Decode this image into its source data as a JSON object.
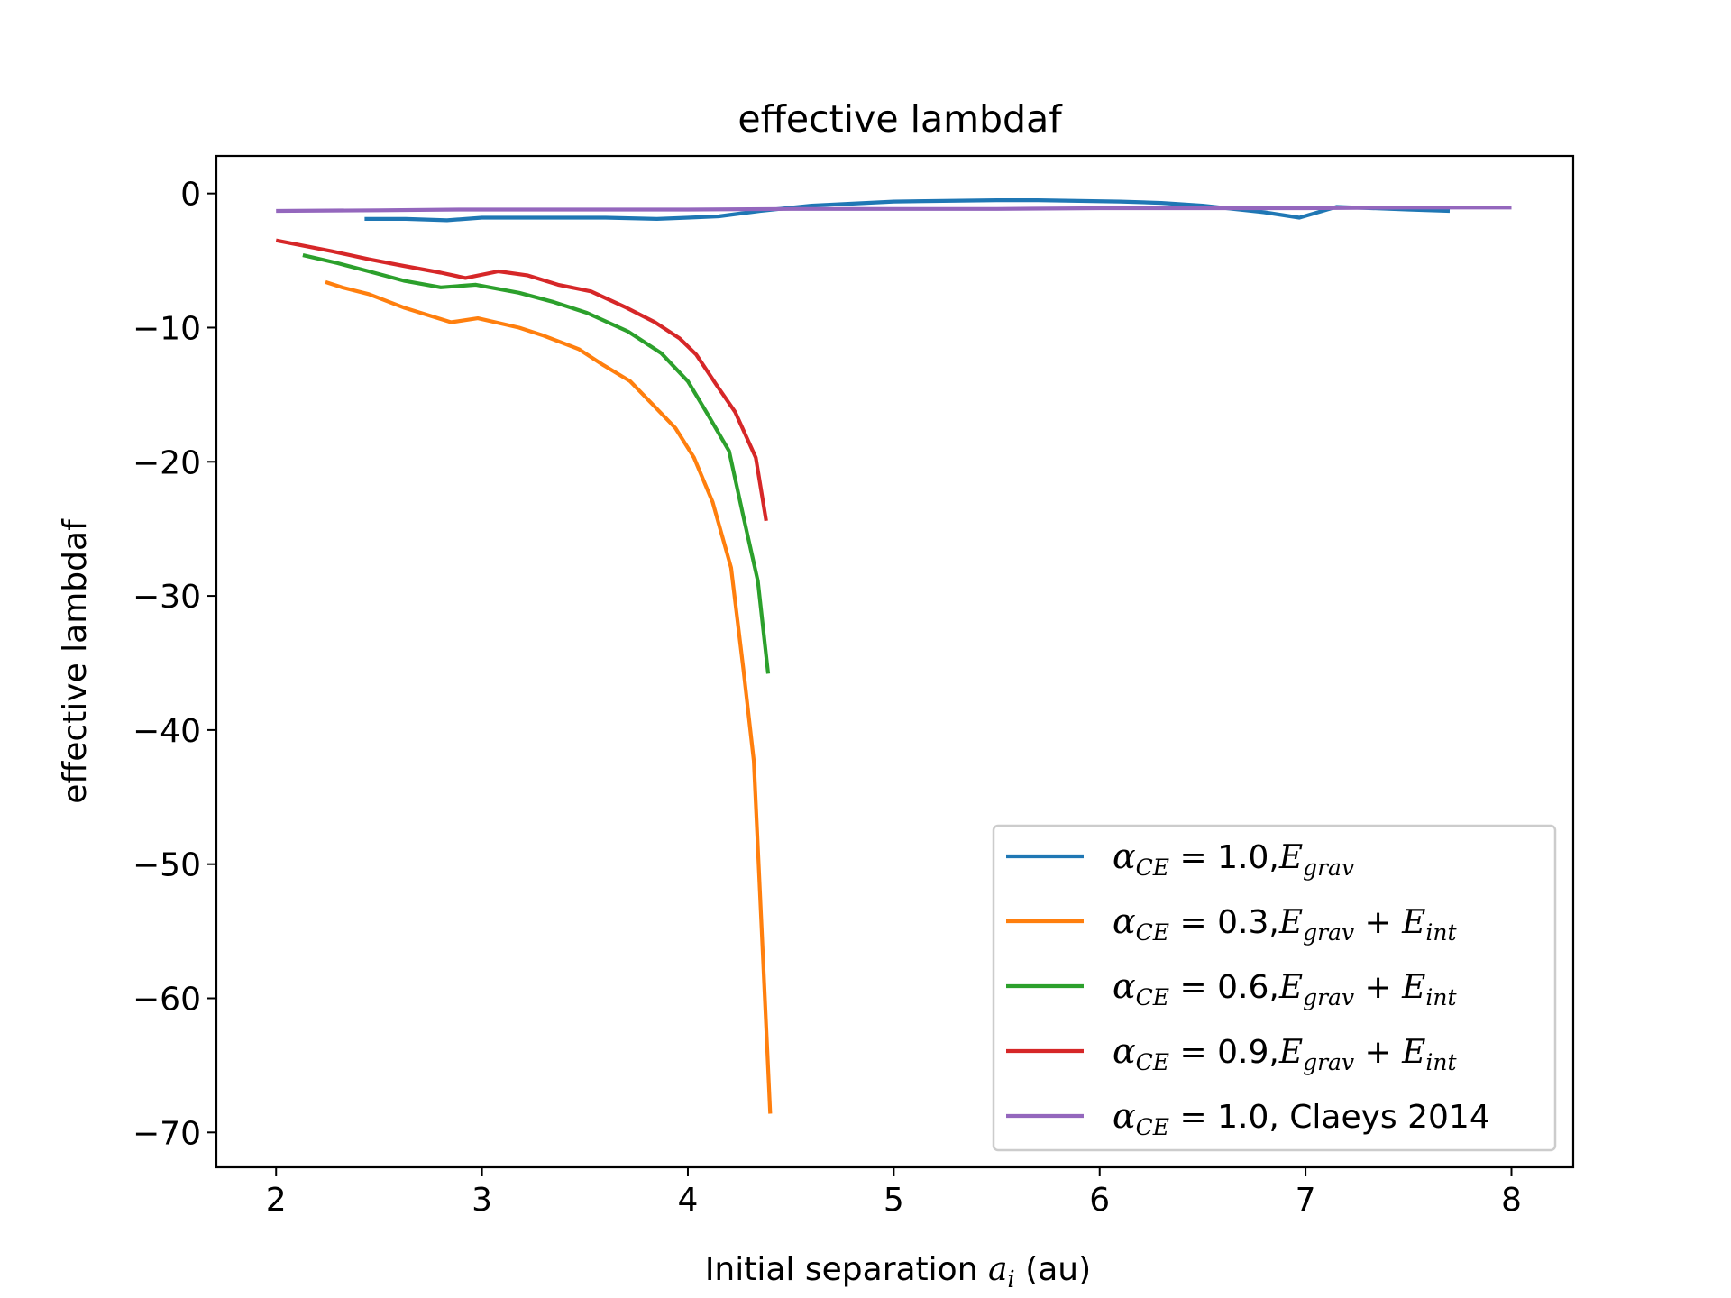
{
  "chart_data": {
    "type": "line",
    "title": "effective lambdaf",
    "ylabel": "effective lambdaf",
    "xlabel": {
      "prefix": "Initial separation ",
      "var": "a",
      "sub": "i",
      "suffix": " (au)"
    },
    "xlim": [
      1.71,
      8.3
    ],
    "ylim": [
      -72.6,
      2.8
    ],
    "xticks": [
      2,
      3,
      4,
      5,
      6,
      7,
      8
    ],
    "xtick_labels": [
      "2",
      "3",
      "4",
      "5",
      "6",
      "7",
      "8"
    ],
    "yticks": [
      0,
      -10,
      -20,
      -30,
      -40,
      -50,
      -60,
      -70
    ],
    "ytick_labels": [
      "0",
      "−10",
      "−20",
      "−30",
      "−40",
      "−50",
      "−60",
      "−70"
    ],
    "grid": false,
    "legend_position": "lower-right",
    "series": [
      {
        "name": "αCE = 1.0, Egrav",
        "legend": {
          "alpha": "α",
          "alpha_sub": "CE",
          "eq": "=",
          "value": "1.0,",
          "terms": [
            {
              "base": "E",
              "sub": "grav"
            }
          ]
        },
        "color": "#1f77b4",
        "x": [
          2.43,
          2.63,
          2.83,
          3.0,
          3.2,
          3.4,
          3.6,
          3.85,
          4.0,
          4.15,
          4.35,
          4.6,
          5.0,
          5.5,
          5.7,
          6.1,
          6.3,
          6.5,
          6.8,
          6.97,
          7.15,
          7.5,
          7.7
        ],
        "y": [
          -1.9,
          -1.9,
          -2.0,
          -1.8,
          -1.8,
          -1.8,
          -1.8,
          -1.9,
          -1.8,
          -1.7,
          -1.3,
          -0.9,
          -0.6,
          -0.5,
          -0.5,
          -0.6,
          -0.7,
          -0.9,
          -1.4,
          -1.8,
          -1.0,
          -1.2,
          -1.3
        ]
      },
      {
        "name": "αCE = 0.3, Egrav + Eint",
        "legend": {
          "alpha": "α",
          "alpha_sub": "CE",
          "eq": "=",
          "value": "0.3,",
          "terms": [
            {
              "base": "E",
              "sub": "grav"
            },
            {
              "base": "E",
              "sub": "int"
            }
          ]
        },
        "color": "#ff7f0e",
        "x": [
          2.24,
          2.32,
          2.45,
          2.62,
          2.85,
          2.98,
          3.18,
          3.3,
          3.47,
          3.59,
          3.72,
          3.84,
          3.94,
          4.03,
          4.12,
          4.21,
          4.27,
          4.32,
          4.36,
          4.4
        ],
        "y": [
          -6.6,
          -7.0,
          -7.5,
          -8.5,
          -9.6,
          -9.3,
          -10.0,
          -10.6,
          -11.6,
          -12.8,
          -14.0,
          -15.9,
          -17.5,
          -19.7,
          -23.0,
          -27.9,
          -35.5,
          -42.3,
          -55.4,
          -68.6
        ]
      },
      {
        "name": "αCE = 0.6, Egrav + Eint",
        "legend": {
          "alpha": "α",
          "alpha_sub": "CE",
          "eq": "=",
          "value": "0.6,",
          "terms": [
            {
              "base": "E",
              "sub": "grav"
            },
            {
              "base": "E",
              "sub": "int"
            }
          ]
        },
        "color": "#2ca02c",
        "x": [
          2.13,
          2.3,
          2.45,
          2.62,
          2.8,
          2.97,
          3.18,
          3.35,
          3.51,
          3.71,
          3.87,
          4.0,
          4.09,
          4.2,
          4.27,
          4.34,
          4.39
        ],
        "y": [
          -4.6,
          -5.2,
          -5.8,
          -6.5,
          -7.0,
          -6.8,
          -7.4,
          -8.1,
          -8.9,
          -10.3,
          -11.9,
          -14.0,
          -16.3,
          -19.2,
          -24.1,
          -28.9,
          -35.8
        ]
      },
      {
        "name": "αCE = 0.9, Egrav + Eint",
        "legend": {
          "alpha": "α",
          "alpha_sub": "CE",
          "eq": "=",
          "value": "0.9,",
          "terms": [
            {
              "base": "E",
              "sub": "grav"
            },
            {
              "base": "E",
              "sub": "int"
            }
          ]
        },
        "color": "#d62728",
        "x": [
          2.0,
          2.27,
          2.45,
          2.62,
          2.8,
          2.92,
          3.08,
          3.22,
          3.37,
          3.53,
          3.7,
          3.84,
          3.96,
          4.04,
          4.14,
          4.23,
          4.33,
          4.38
        ],
        "y": [
          -3.5,
          -4.3,
          -4.9,
          -5.4,
          -5.9,
          -6.3,
          -5.8,
          -6.1,
          -6.8,
          -7.3,
          -8.5,
          -9.6,
          -10.8,
          -12.0,
          -14.3,
          -16.3,
          -19.7,
          -24.4
        ]
      },
      {
        "name": "αCE = 1.0, Claeys 2014",
        "legend": {
          "alpha": "α",
          "alpha_sub": "CE",
          "eq": "=",
          "value": "1.0, Claeys 2014",
          "terms": []
        },
        "color": "#9467bd",
        "x": [
          2.0,
          2.5,
          2.9,
          3.5,
          4.0,
          4.5,
          5.0,
          5.5,
          6.0,
          6.5,
          7.0,
          7.5,
          8.0
        ],
        "y": [
          -1.3,
          -1.25,
          -1.2,
          -1.2,
          -1.2,
          -1.15,
          -1.15,
          -1.15,
          -1.1,
          -1.1,
          -1.1,
          -1.05,
          -1.05
        ]
      }
    ]
  }
}
